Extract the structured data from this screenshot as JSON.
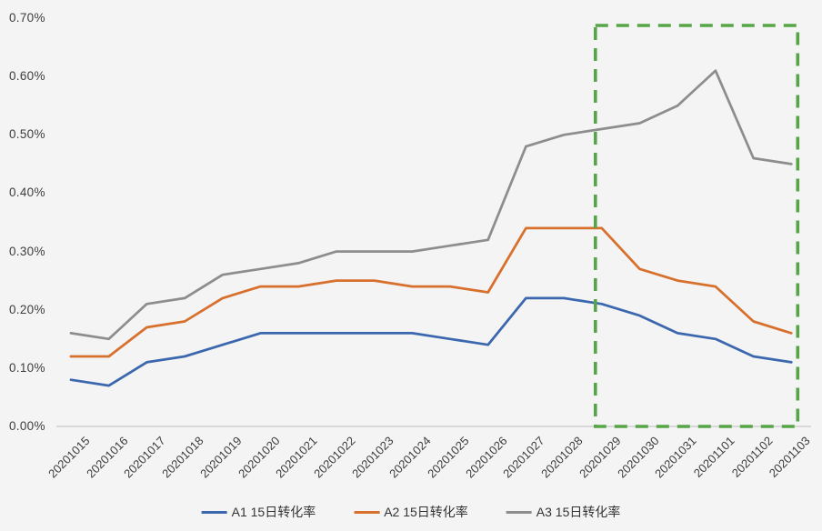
{
  "chart_data": {
    "type": "line",
    "categories": [
      "20201015",
      "20201016",
      "20201017",
      "20201018",
      "20201019",
      "20201020",
      "20201021",
      "20201022",
      "20201023",
      "20201024",
      "20201025",
      "20201026",
      "20201027",
      "20201028",
      "20201029",
      "20201030",
      "20201031",
      "20201101",
      "20201102",
      "20201103"
    ],
    "series": [
      {
        "name": "A1 15日转化率",
        "color": "#3b67ae",
        "values": [
          0.08,
          0.07,
          0.11,
          0.12,
          0.14,
          0.16,
          0.16,
          0.16,
          0.16,
          0.16,
          0.15,
          0.14,
          0.22,
          0.22,
          0.21,
          0.19,
          0.16,
          0.15,
          0.12,
          0.11
        ]
      },
      {
        "name": "A2 15日转化率",
        "color": "#d8702d",
        "values": [
          0.12,
          0.12,
          0.17,
          0.18,
          0.22,
          0.24,
          0.24,
          0.25,
          0.25,
          0.24,
          0.24,
          0.23,
          0.34,
          0.34,
          0.34,
          0.27,
          0.25,
          0.24,
          0.18,
          0.16
        ]
      },
      {
        "name": "A3 15日转化率",
        "color": "#8d8d8d",
        "values": [
          0.16,
          0.15,
          0.21,
          0.22,
          0.26,
          0.27,
          0.28,
          0.3,
          0.3,
          0.3,
          0.31,
          0.32,
          0.48,
          0.5,
          0.51,
          0.52,
          0.55,
          0.61,
          0.46,
          0.45
        ]
      }
    ],
    "y_ticks": [
      "0.00%",
      "0.10%",
      "0.20%",
      "0.30%",
      "0.40%",
      "0.50%",
      "0.60%",
      "0.70%"
    ],
    "ylim_percent": [
      0.0,
      0.7
    ],
    "xlabel": "",
    "ylabel": "",
    "grid": false,
    "legend_position": "bottom",
    "annotations": {
      "highlight_box": {
        "shape": "dashed-rectangle",
        "color": "#56a546",
        "from_category": "20201029",
        "to_category": "20201103",
        "covers": "full plot height"
      }
    },
    "axis_line_color": "#c8c8c8",
    "tick_text_color": "#3c3c3c"
  }
}
